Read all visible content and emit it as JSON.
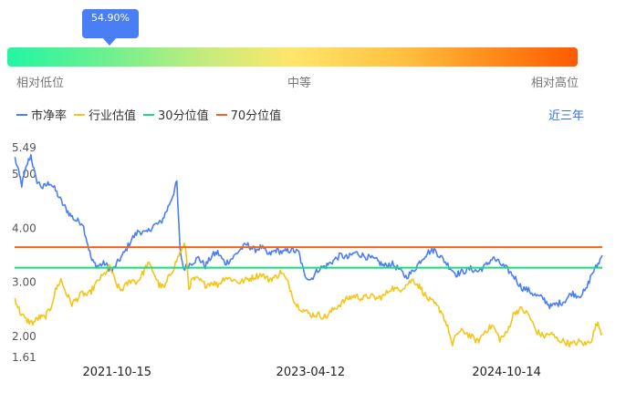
{
  "percentile": {
    "value": 54.9,
    "label": "54.90%",
    "scale_labels": [
      "相对低位",
      "中等",
      "相对高位"
    ]
  },
  "legend": [
    {
      "name": "市净率",
      "color": "#4a7ef5"
    },
    {
      "name": "行业估值",
      "color": "#f5c518"
    },
    {
      "name": "30分位值",
      "color": "#1fd87f"
    },
    {
      "name": "70分位值",
      "color": "#f0641e"
    }
  ],
  "range_link": "近三年",
  "chart_data": {
    "type": "line",
    "ylim": [
      1.61,
      5.49
    ],
    "y_ticks": [
      "1.61",
      "2.00",
      "3.00",
      "4.00",
      "5.00",
      "5.49"
    ],
    "y_tick_values": [
      1.61,
      2.0,
      3.0,
      4.0,
      5.0,
      5.49
    ],
    "x_range": [
      "2020-12-31",
      "2025-07-10"
    ],
    "x_ticks": [
      "2021-10-15",
      "2023-04-12",
      "2024-10-14"
    ],
    "series": [
      {
        "name": "市净率",
        "color": "#4a7ef5",
        "points": [
          [
            "2021-01-01",
            5.3
          ],
          [
            "2021-01-20",
            4.8
          ],
          [
            "2021-02-05",
            5.2
          ],
          [
            "2021-02-15",
            5.35
          ],
          [
            "2021-03-01",
            4.9
          ],
          [
            "2021-03-20",
            4.75
          ],
          [
            "2021-04-10",
            4.85
          ],
          [
            "2021-04-25",
            4.7
          ],
          [
            "2021-05-15",
            4.45
          ],
          [
            "2021-06-05",
            4.25
          ],
          [
            "2021-06-20",
            4.15
          ],
          [
            "2021-07-10",
            4.1
          ],
          [
            "2021-07-25",
            3.7
          ],
          [
            "2021-08-05",
            3.4
          ],
          [
            "2021-08-20",
            3.3
          ],
          [
            "2021-09-10",
            3.35
          ],
          [
            "2021-10-01",
            3.2
          ],
          [
            "2021-10-20",
            3.4
          ],
          [
            "2021-11-05",
            3.55
          ],
          [
            "2021-11-25",
            3.8
          ],
          [
            "2021-12-15",
            3.95
          ],
          [
            "2022-01-05",
            3.9
          ],
          [
            "2022-01-25",
            4.05
          ],
          [
            "2022-02-15",
            4.1
          ],
          [
            "2022-03-05",
            4.35
          ],
          [
            "2022-03-20",
            4.6
          ],
          [
            "2022-04-01",
            4.85
          ],
          [
            "2022-04-10",
            3.6
          ],
          [
            "2022-04-20",
            3.25
          ],
          [
            "2022-05-10",
            3.35
          ],
          [
            "2022-06-01",
            3.45
          ],
          [
            "2022-06-20",
            3.3
          ],
          [
            "2022-07-10",
            3.5
          ],
          [
            "2022-07-25",
            3.55
          ],
          [
            "2022-08-15",
            3.35
          ],
          [
            "2022-09-05",
            3.45
          ],
          [
            "2022-09-25",
            3.6
          ],
          [
            "2022-10-15",
            3.7
          ],
          [
            "2022-11-05",
            3.6
          ],
          [
            "2022-11-25",
            3.65
          ],
          [
            "2022-12-15",
            3.5
          ],
          [
            "2023-01-05",
            3.6
          ],
          [
            "2023-01-25",
            3.55
          ],
          [
            "2023-02-15",
            3.6
          ],
          [
            "2023-03-10",
            3.55
          ],
          [
            "2023-03-25",
            3.15
          ],
          [
            "2023-04-12",
            3.05
          ],
          [
            "2023-05-05",
            3.25
          ],
          [
            "2023-05-25",
            3.3
          ],
          [
            "2023-06-15",
            3.4
          ],
          [
            "2023-07-05",
            3.5
          ],
          [
            "2023-07-25",
            3.45
          ],
          [
            "2023-08-15",
            3.55
          ],
          [
            "2023-09-05",
            3.5
          ],
          [
            "2023-09-25",
            3.45
          ],
          [
            "2023-10-15",
            3.4
          ],
          [
            "2023-11-05",
            3.3
          ],
          [
            "2023-11-25",
            3.35
          ],
          [
            "2023-12-15",
            3.25
          ],
          [
            "2024-01-05",
            3.1
          ],
          [
            "2024-01-25",
            3.2
          ],
          [
            "2024-02-15",
            3.4
          ],
          [
            "2024-03-05",
            3.55
          ],
          [
            "2024-03-25",
            3.6
          ],
          [
            "2024-04-15",
            3.45
          ],
          [
            "2024-05-05",
            3.3
          ],
          [
            "2024-05-25",
            3.15
          ],
          [
            "2024-06-15",
            3.2
          ],
          [
            "2024-07-05",
            3.25
          ],
          [
            "2024-07-25",
            3.2
          ],
          [
            "2024-08-15",
            3.3
          ],
          [
            "2024-09-05",
            3.45
          ],
          [
            "2024-09-25",
            3.35
          ],
          [
            "2024-10-14",
            3.25
          ],
          [
            "2024-11-05",
            3.1
          ],
          [
            "2024-11-25",
            2.9
          ],
          [
            "2024-12-15",
            2.85
          ],
          [
            "2025-01-05",
            2.75
          ],
          [
            "2025-01-25",
            2.7
          ],
          [
            "2025-02-15",
            2.55
          ],
          [
            "2025-03-05",
            2.6
          ],
          [
            "2025-03-25",
            2.65
          ],
          [
            "2025-04-15",
            2.8
          ],
          [
            "2025-05-05",
            2.75
          ],
          [
            "2025-05-25",
            2.85
          ],
          [
            "2025-06-10",
            3.15
          ],
          [
            "2025-06-25",
            3.3
          ],
          [
            "2025-07-10",
            3.5
          ]
        ]
      },
      {
        "name": "行业估值",
        "color": "#f5c518",
        "points": [
          [
            "2021-01-01",
            2.7
          ],
          [
            "2021-01-15",
            2.45
          ],
          [
            "2021-02-01",
            2.3
          ],
          [
            "2021-02-20",
            2.25
          ],
          [
            "2021-03-10",
            2.35
          ],
          [
            "2021-03-25",
            2.35
          ],
          [
            "2021-04-10",
            2.5
          ],
          [
            "2021-04-25",
            2.85
          ],
          [
            "2021-05-10",
            3.05
          ],
          [
            "2021-05-25",
            2.8
          ],
          [
            "2021-06-10",
            2.6
          ],
          [
            "2021-06-25",
            2.7
          ],
          [
            "2021-07-10",
            2.8
          ],
          [
            "2021-07-25",
            2.75
          ],
          [
            "2021-08-10",
            2.9
          ],
          [
            "2021-08-25",
            3.05
          ],
          [
            "2021-09-10",
            3.15
          ],
          [
            "2021-09-25",
            3.3
          ],
          [
            "2021-10-10",
            3.0
          ],
          [
            "2021-10-25",
            2.85
          ],
          [
            "2021-11-10",
            2.95
          ],
          [
            "2021-11-25",
            3.05
          ],
          [
            "2021-12-10",
            3.0
          ],
          [
            "2021-12-25",
            3.15
          ],
          [
            "2022-01-10",
            3.35
          ],
          [
            "2022-01-25",
            3.2
          ],
          [
            "2022-02-10",
            2.95
          ],
          [
            "2022-02-25",
            2.9
          ],
          [
            "2022-03-10",
            3.1
          ],
          [
            "2022-03-25",
            3.3
          ],
          [
            "2022-04-10",
            3.55
          ],
          [
            "2022-04-25",
            3.7
          ],
          [
            "2022-05-05",
            2.9
          ],
          [
            "2022-05-15",
            3.05
          ],
          [
            "2022-06-01",
            3.05
          ],
          [
            "2022-06-20",
            2.95
          ],
          [
            "2022-07-10",
            3.0
          ],
          [
            "2022-07-25",
            2.95
          ],
          [
            "2022-08-15",
            3.1
          ],
          [
            "2022-09-05",
            3.05
          ],
          [
            "2022-09-25",
            3.0
          ],
          [
            "2022-10-15",
            3.05
          ],
          [
            "2022-11-05",
            3.1
          ],
          [
            "2022-11-25",
            3.15
          ],
          [
            "2022-12-15",
            3.05
          ],
          [
            "2023-01-05",
            3.1
          ],
          [
            "2023-01-20",
            3.2
          ],
          [
            "2023-02-10",
            2.95
          ],
          [
            "2023-03-01",
            2.6
          ],
          [
            "2023-03-20",
            2.5
          ],
          [
            "2023-04-12",
            2.4
          ],
          [
            "2023-05-05",
            2.4
          ],
          [
            "2023-05-25",
            2.35
          ],
          [
            "2023-06-15",
            2.5
          ],
          [
            "2023-07-05",
            2.6
          ],
          [
            "2023-07-25",
            2.7
          ],
          [
            "2023-08-15",
            2.75
          ],
          [
            "2023-09-05",
            2.7
          ],
          [
            "2023-09-25",
            2.75
          ],
          [
            "2023-10-15",
            2.7
          ],
          [
            "2023-11-05",
            2.75
          ],
          [
            "2023-11-25",
            2.9
          ],
          [
            "2023-12-15",
            2.85
          ],
          [
            "2024-01-05",
            2.95
          ],
          [
            "2024-01-25",
            3.05
          ],
          [
            "2024-02-15",
            2.9
          ],
          [
            "2024-03-05",
            2.7
          ],
          [
            "2024-03-25",
            2.6
          ],
          [
            "2024-04-15",
            2.45
          ],
          [
            "2024-05-05",
            2.1
          ],
          [
            "2024-05-15",
            1.8
          ],
          [
            "2024-05-25",
            2.05
          ],
          [
            "2024-06-15",
            2.1
          ],
          [
            "2024-07-05",
            2.0
          ],
          [
            "2024-07-25",
            1.9
          ],
          [
            "2024-08-15",
            2.1
          ],
          [
            "2024-09-05",
            2.2
          ],
          [
            "2024-09-25",
            1.95
          ],
          [
            "2024-10-14",
            2.05
          ],
          [
            "2024-11-05",
            2.45
          ],
          [
            "2024-11-25",
            2.5
          ],
          [
            "2024-12-15",
            2.4
          ],
          [
            "2025-01-05",
            2.1
          ],
          [
            "2025-01-25",
            2.0
          ],
          [
            "2025-02-15",
            2.05
          ],
          [
            "2025-03-05",
            1.95
          ],
          [
            "2025-03-25",
            1.9
          ],
          [
            "2025-04-15",
            1.85
          ],
          [
            "2025-05-05",
            1.9
          ],
          [
            "2025-05-25",
            1.85
          ],
          [
            "2025-06-10",
            1.95
          ],
          [
            "2025-06-25",
            2.25
          ],
          [
            "2025-07-10",
            2.05
          ]
        ]
      },
      {
        "name": "30分位值",
        "color": "#1fd87f",
        "constant": 3.27
      },
      {
        "name": "70分位值",
        "color": "#f0641e",
        "constant": 3.65
      }
    ]
  }
}
